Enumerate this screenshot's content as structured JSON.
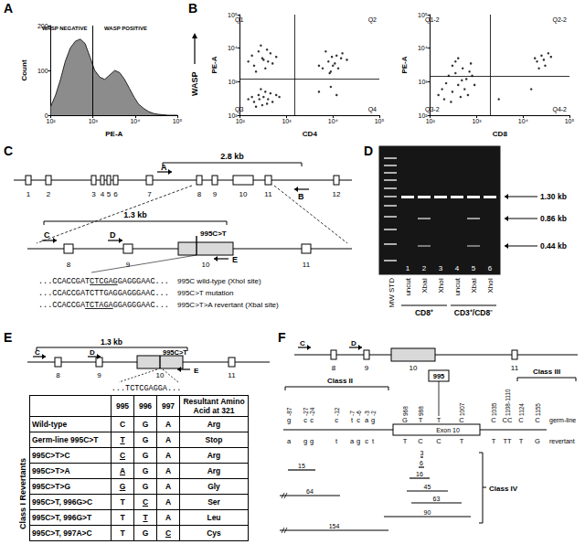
{
  "panel_labels": [
    "A",
    "B",
    "C",
    "D",
    "E",
    "F"
  ],
  "chart_data": [
    {
      "type": "area",
      "x_label": "PE-A",
      "y_label": "Count",
      "log": "x",
      "color": "#8c8c8c",
      "x": [
        100,
        130,
        170,
        220,
        290,
        380,
        500,
        650,
        850,
        1100,
        1450,
        1900,
        2500,
        3300,
        4300,
        5600,
        7300,
        9500,
        12000,
        16000,
        21000,
        27000,
        35000,
        46000,
        60000,
        100000
      ],
      "values": [
        20,
        45,
        80,
        120,
        150,
        165,
        170,
        160,
        130,
        100,
        85,
        80,
        90,
        100,
        95,
        80,
        60,
        40,
        25,
        15,
        8,
        4,
        2,
        1,
        0,
        0
      ],
      "xlim": [
        100,
        100000
      ],
      "xticks": [
        {
          "value": 100,
          "label": "10²"
        },
        {
          "value": 1000,
          "label": "10³"
        },
        {
          "value": 10000,
          "label": "10⁴"
        },
        {
          "value": 100000,
          "label": "10⁵"
        }
      ],
      "ylim": [
        0,
        200
      ],
      "yticks": [
        0,
        100,
        200
      ],
      "gate_x": 1000,
      "annotations": [
        "WASP NEGATIVE",
        "WASP POSITIVE"
      ]
    },
    {
      "type": "scatter",
      "x_label": "CD4",
      "y_label": "PE-A",
      "side_label": "WASP",
      "log": true,
      "color": "#000000",
      "marker": "circle",
      "x": [
        200,
        300,
        250,
        400,
        350,
        180,
        500,
        280,
        450,
        220,
        320,
        600,
        150,
        380,
        260,
        700,
        200,
        300,
        250,
        400,
        350,
        180,
        500,
        280,
        450,
        220,
        320,
        600,
        150,
        380,
        6000,
        8000,
        10000,
        12000,
        9000,
        15000,
        7000,
        11000,
        20000,
        5000,
        13000,
        9500,
        16000,
        8500,
        5000,
        9000,
        12000
      ],
      "values": [
        250,
        200,
        400,
        300,
        500,
        350,
        250,
        600,
        450,
        180,
        350,
        400,
        300,
        220,
        300,
        350,
        3000,
        5000,
        8000,
        4000,
        2500,
        6000,
        3500,
        12000,
        7000,
        2000,
        4500,
        5500,
        4000,
        9000,
        2500,
        4000,
        3000,
        6000,
        2000,
        5000,
        8000,
        3500,
        4500,
        3000,
        2500,
        5500,
        7000,
        1800,
        500,
        700,
        400
      ],
      "xlim": [
        100,
        100000
      ],
      "ylim": [
        100,
        100000
      ],
      "xticks": [
        {
          "value": 100,
          "label": "10²"
        },
        {
          "value": 1000,
          "label": "10³"
        },
        {
          "value": 10000,
          "label": "10⁴"
        },
        {
          "value": 100000,
          "label": "10⁵"
        }
      ],
      "yticks": [
        {
          "value": 100,
          "label": "10²"
        },
        {
          "value": 1000,
          "label": "10³"
        },
        {
          "value": 10000,
          "label": "10⁴"
        },
        {
          "value": 100000,
          "label": "10⁵"
        }
      ],
      "quadrant_x": 1500,
      "quadrant_y": 1200,
      "quadrant_labels": [
        "Q1",
        "Q2",
        "Q3",
        "Q4"
      ]
    },
    {
      "type": "scatter",
      "x_label": "CD8",
      "y_label": "PE-A",
      "log": true,
      "color": "#000000",
      "marker": "circle",
      "x": [
        200,
        300,
        400,
        250,
        500,
        350,
        180,
        600,
        450,
        700,
        300,
        220,
        550,
        800,
        400,
        650,
        280,
        900,
        350,
        480,
        150,
        750,
        20000,
        25000,
        30000,
        18000,
        35000,
        22000,
        28000,
        40000,
        15000,
        3000
      ],
      "values": [
        300,
        500,
        800,
        1500,
        2500,
        4000,
        600,
        1200,
        350,
        2000,
        3000,
        900,
        600,
        1500,
        5000,
        400,
        250,
        800,
        1800,
        1100,
        400,
        3500,
        4000,
        6000,
        3000,
        5000,
        7000,
        2500,
        4500,
        5500,
        600,
        300
      ],
      "xlim": [
        100,
        100000
      ],
      "ylim": [
        100,
        100000
      ],
      "xticks": [
        {
          "value": 100,
          "label": "10²"
        },
        {
          "value": 1000,
          "label": "10³"
        },
        {
          "value": 10000,
          "label": "10⁴"
        },
        {
          "value": 100000,
          "label": "10⁵"
        }
      ],
      "yticks": [
        {
          "value": 100,
          "label": "10²"
        },
        {
          "value": 1000,
          "label": "10³"
        },
        {
          "value": 10000,
          "label": "10⁴"
        },
        {
          "value": 100000,
          "label": "10⁵"
        }
      ],
      "quadrant_x": 2000,
      "quadrant_y": 1500,
      "quadrant_labels": [
        "Q1-2",
        "Q2-2",
        "Q3-2",
        "Q4-2"
      ]
    }
  ],
  "diagram_c": {
    "length_top": "2.8 kb",
    "primers_top": [
      "A",
      "B"
    ],
    "exons_top": [
      "1",
      "2",
      "3",
      "4",
      "5",
      "6",
      "7",
      "8",
      "9",
      "10",
      "11",
      "12"
    ],
    "length_zoom": "1.3 kb",
    "primers_zoom": [
      "C",
      "D",
      "E"
    ],
    "exons_zoom": [
      "8",
      "9",
      "10",
      "11"
    ],
    "mutation": "995C>T",
    "sequences": [
      {
        "parts": [
          {
            "text": "...CCACCGAT"
          },
          {
            "text": "CTCGAG",
            "underline": true
          },
          {
            "text": "GAGGGAAC..."
          }
        ],
        "note": "995C wild-type (XhoI site)"
      },
      {
        "parts": [
          {
            "text": "...CCACCGATCTTGAGGAGGGAAC..."
          }
        ],
        "note": "995C>T mutation"
      },
      {
        "parts": [
          {
            "text": "...CCACCGA"
          },
          {
            "text": "TCTAGA",
            "underline": true
          },
          {
            "text": "GGAGGGAAC..."
          }
        ],
        "note": "995C>T>A revertant (XbaI site)"
      }
    ]
  },
  "gel_d": {
    "ladder_label": "MW STD",
    "lanes": [
      "1",
      "2",
      "3",
      "4",
      "5",
      "6"
    ],
    "digests": [
      "uncut",
      "XbaI",
      "XhoI",
      "uncut",
      "XbaI",
      "XhoI"
    ],
    "groups": [
      {
        "label": "CD8⁺",
        "lanes": [
          "1",
          "2",
          "3"
        ]
      },
      {
        "label": "CD3⁺/CD8⁻",
        "lanes": [
          "4",
          "5",
          "6"
        ]
      }
    ],
    "markers": [
      {
        "label": "1.30 kb",
        "lanes": [
          "1",
          "2",
          "3",
          "4",
          "5",
          "6"
        ]
      },
      {
        "label": "0.86 kb",
        "lanes": [
          "2",
          "5"
        ]
      },
      {
        "label": "0.44 kb",
        "lanes": [
          "2",
          "5"
        ]
      }
    ]
  },
  "table_e": {
    "diagram": {
      "length": "1.3 kb",
      "primers": [
        "C",
        "D",
        "E"
      ],
      "exons": [
        "8",
        "9",
        "10",
        "11"
      ],
      "mutation": "995C>T",
      "sequence": "...TCTCGAGGA..."
    },
    "columns": [
      "995",
      "996",
      "997",
      "Resultant Amino Acid at 321"
    ],
    "rows": [
      {
        "name": "Wild-type",
        "cells": [
          "C",
          "G",
          "A"
        ],
        "result": "Arg"
      },
      {
        "name": "Germ-line 995C>T",
        "cells": [
          {
            "text": "T",
            "underline": true
          },
          "G",
          "A"
        ],
        "result": "Stop"
      }
    ],
    "group": {
      "label": "Class I Revertants",
      "rows": [
        {
          "name": "995C>T>C",
          "cells": [
            {
              "text": "C",
              "underline": true
            },
            "G",
            "A"
          ],
          "result": "Arg"
        },
        {
          "name": "995C>T>A",
          "cells": [
            {
              "text": "A",
              "underline": true
            },
            "G",
            "A"
          ],
          "result": "Arg"
        },
        {
          "name": "995C>T>G",
          "cells": [
            {
              "text": "G",
              "underline": true
            },
            "G",
            "A"
          ],
          "result": "Gly"
        },
        {
          "name": "995C>T, 996G>C",
          "cells": [
            "T",
            {
              "text": "C",
              "underline": true
            },
            "A"
          ],
          "result": "Ser"
        },
        {
          "name": "995C>T, 996G>T",
          "cells": [
            "T",
            {
              "text": "T",
              "underline": true
            },
            "A"
          ],
          "result": "Leu"
        },
        {
          "name": "995C>T, 997A>C",
          "cells": [
            "T",
            "G",
            {
              "text": "C",
              "underline": true
            }
          ],
          "result": "Cys"
        }
      ]
    }
  },
  "diagram_f": {
    "primers": [
      "C",
      "D"
    ],
    "exons": [
      "8",
      "9",
      "10",
      "11"
    ],
    "classes": [
      "Class II",
      "Class III",
      "Class IV"
    ],
    "row_labels": [
      "germ-line",
      "revertant"
    ],
    "exon_label": "Exon 10",
    "sites": [
      {
        "pos": "-87",
        "germline": "g",
        "revertant": "a"
      },
      {
        "pos": "-27",
        "germline": "c",
        "revertant": "g"
      },
      {
        "pos": "-24",
        "germline": "c",
        "revertant": "g"
      },
      {
        "pos": "-12",
        "germline": "c",
        "revertant": "t"
      },
      {
        "pos": "-7",
        "germline": "t",
        "revertant": "a"
      },
      {
        "pos": "-6",
        "germline": "c",
        "revertant": "g"
      },
      {
        "pos": "-3",
        "germline": "a",
        "revertant": "c"
      },
      {
        "pos": "-2",
        "germline": "g",
        "revertant": "t"
      },
      {
        "pos": "968",
        "germline": "G",
        "revertant": "T"
      },
      {
        "pos": "988",
        "germline": "T",
        "revertant": "C"
      },
      {
        "pos": "995",
        "germline": "T",
        "revertant": "C",
        "boxed": true
      },
      {
        "pos": "1007",
        "germline": "C",
        "revertant": "T"
      },
      {
        "pos": "1035",
        "germline": "C",
        "revertant": "T"
      },
      {
        "pos": "1108-1110",
        "germline": "CC",
        "revertant": "TT"
      },
      {
        "pos": "1124",
        "germline": "C",
        "revertant": "T"
      },
      {
        "pos": "1155",
        "germline": "C",
        "revertant": "G"
      }
    ],
    "deletions": [
      "15",
      "64",
      "154",
      "3",
      "6",
      "16",
      "45",
      "63",
      "90"
    ]
  }
}
